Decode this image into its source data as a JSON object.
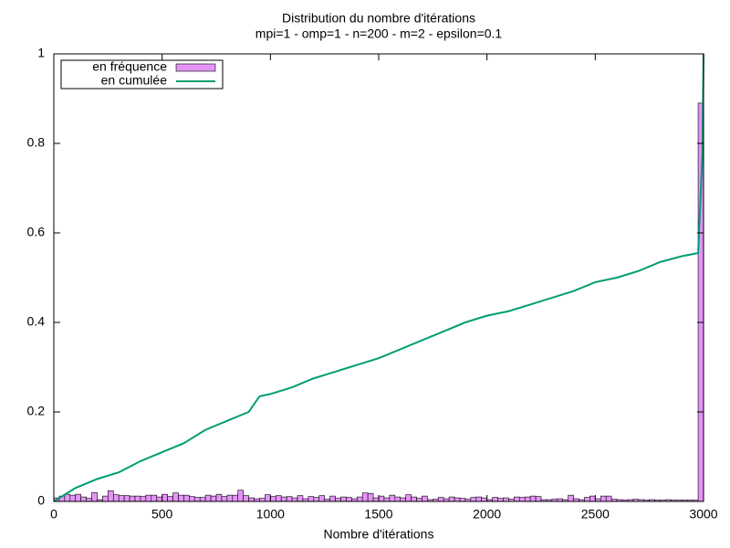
{
  "chart_data": {
    "type": "histogram",
    "title": "Distribution du nombre d'itérations",
    "subtitle": "mpi=1 - omp=1 - n=200 - m=2 - epsilon=0.1",
    "xlabel": "Nombre d'itérations",
    "xlim": [
      0,
      3000
    ],
    "ylim": [
      0,
      1
    ],
    "xticks": [
      0,
      500,
      1000,
      1500,
      2000,
      2500,
      3000
    ],
    "yticks": [
      0,
      0.2,
      0.4,
      0.6,
      0.8,
      1
    ],
    "legend": "top-left",
    "bins": [
      0,
      25,
      50,
      75,
      100,
      125,
      150,
      175,
      200,
      225,
      250,
      275,
      300,
      325,
      350,
      375,
      400,
      425,
      450,
      475,
      500,
      525,
      550,
      575,
      600,
      625,
      650,
      675,
      700,
      725,
      750,
      775,
      800,
      825,
      850,
      875,
      900,
      925,
      950,
      975,
      1000,
      1025,
      1050,
      1075,
      1100,
      1125,
      1150,
      1175,
      1200,
      1225,
      1250,
      1275,
      1300,
      1325,
      1350,
      1375,
      1400,
      1425,
      1450,
      1475,
      1500,
      1525,
      1550,
      1575,
      1600,
      1625,
      1650,
      1675,
      1700,
      1725,
      1750,
      1775,
      1800,
      1825,
      1850,
      1875,
      1900,
      1925,
      1950,
      1975,
      2000,
      2025,
      2050,
      2075,
      2100,
      2125,
      2150,
      2175,
      2200,
      2225,
      2250,
      2275,
      2300,
      2325,
      2350,
      2375,
      2400,
      2425,
      2450,
      2475,
      2500,
      2525,
      2550,
      2575,
      2600,
      2625,
      2650,
      2675,
      2700,
      2725,
      2750,
      2775,
      2800,
      2825,
      2850,
      2875,
      2900,
      2925,
      2950,
      2975,
      3000
    ],
    "series": [
      {
        "name": "en fréquence",
        "type": "histogram",
        "color": "#e494f6",
        "values": [
          0.008,
          0.012,
          0.016,
          0.014,
          0.016,
          0.01,
          0.007,
          0.02,
          0.004,
          0.012,
          0.024,
          0.015,
          0.013,
          0.013,
          0.012,
          0.012,
          0.011,
          0.014,
          0.014,
          0.01,
          0.016,
          0.011,
          0.019,
          0.014,
          0.014,
          0.011,
          0.009,
          0.009,
          0.014,
          0.012,
          0.016,
          0.011,
          0.014,
          0.014,
          0.025,
          0.013,
          0.008,
          0.006,
          0.007,
          0.015,
          0.011,
          0.013,
          0.01,
          0.011,
          0.008,
          0.013,
          0.006,
          0.011,
          0.009,
          0.013,
          0.005,
          0.012,
          0.007,
          0.01,
          0.009,
          0.006,
          0.01,
          0.019,
          0.018,
          0.008,
          0.012,
          0.008,
          0.014,
          0.01,
          0.008,
          0.015,
          0.01,
          0.007,
          0.012,
          0.004,
          0.005,
          0.009,
          0.006,
          0.01,
          0.008,
          0.007,
          0.005,
          0.009,
          0.01,
          0.008,
          0.004,
          0.009,
          0.007,
          0.008,
          0.005,
          0.01,
          0.009,
          0.01,
          0.012,
          0.011,
          0.004,
          0.004,
          0.005,
          0.006,
          0.004,
          0.014,
          0.006,
          0.004,
          0.009,
          0.012,
          0.006,
          0.012,
          0.012,
          0.005,
          0.004,
          0.003,
          0.004,
          0.005,
          0.004,
          0.003,
          0.004,
          0.003,
          0.003,
          0.004,
          0.003,
          0.003,
          0.003,
          0.003,
          0.003,
          0.89
        ]
      },
      {
        "name": "en cumulée",
        "type": "line",
        "color": "#009e73",
        "x": [
          0,
          100,
          200,
          300,
          400,
          500,
          600,
          700,
          800,
          900,
          950,
          1000,
          1100,
          1200,
          1300,
          1400,
          1500,
          1600,
          1700,
          1800,
          1900,
          2000,
          2100,
          2200,
          2300,
          2400,
          2500,
          2600,
          2700,
          2800,
          2900,
          2975,
          2995,
          3000
        ],
        "values": [
          0,
          0.03,
          0.05,
          0.065,
          0.09,
          0.11,
          0.13,
          0.16,
          0.18,
          0.2,
          0.235,
          0.24,
          0.255,
          0.275,
          0.29,
          0.305,
          0.32,
          0.34,
          0.36,
          0.38,
          0.4,
          0.415,
          0.425,
          0.44,
          0.455,
          0.47,
          0.49,
          0.5,
          0.515,
          0.535,
          0.548,
          0.555,
          0.78,
          1
        ]
      }
    ]
  }
}
